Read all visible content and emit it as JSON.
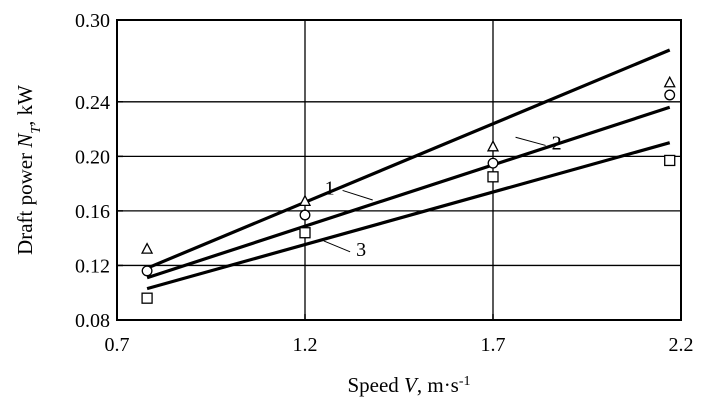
{
  "chart_data": {
    "type": "line",
    "xlabel": "Speed V, m·s⁻¹",
    "xlabel_parts": {
      "prefix": "Speed ",
      "var": "V",
      "unit": ", m·s",
      "exp": "-1"
    },
    "ylabel": "Draft power N_T, kW",
    "ylabel_parts": {
      "prefix": "Draft power ",
      "var": "N",
      "sub": "T",
      "unit": ", kW"
    },
    "xlim": [
      0.7,
      2.2
    ],
    "ylim": [
      0.08,
      0.3
    ],
    "x_ticks": [
      0.7,
      1.2,
      1.7,
      2.2
    ],
    "x_tick_labels": [
      "0.7",
      "1.2",
      "1.7",
      "2.2"
    ],
    "y_ticks": [
      0.08,
      0.12,
      0.16,
      0.2,
      0.24,
      0.3
    ],
    "y_tick_labels": [
      "0.08",
      "0.12",
      "0.16",
      "0.20",
      "0.24",
      "0.30"
    ],
    "grid_x": [
      1.2,
      1.7
    ],
    "grid_y": [
      0.12,
      0.16,
      0.2,
      0.24
    ],
    "series": [
      {
        "name": "1",
        "marker": "triangle",
        "fit": [
          [
            0.78,
            0.118
          ],
          [
            2.17,
            0.278
          ]
        ],
        "points": [
          [
            0.78,
            0.132
          ],
          [
            1.2,
            0.167
          ],
          [
            1.7,
            0.207
          ],
          [
            2.17,
            0.254
          ]
        ]
      },
      {
        "name": "2",
        "marker": "circle",
        "fit": [
          [
            0.78,
            0.111
          ],
          [
            2.17,
            0.236
          ]
        ],
        "points": [
          [
            0.78,
            0.116
          ],
          [
            1.2,
            0.157
          ],
          [
            1.7,
            0.195
          ],
          [
            2.17,
            0.245
          ]
        ]
      },
      {
        "name": "3",
        "marker": "square",
        "fit": [
          [
            0.78,
            0.103
          ],
          [
            2.17,
            0.21
          ]
        ],
        "points": [
          [
            0.78,
            0.096
          ],
          [
            1.2,
            0.144
          ],
          [
            1.7,
            0.185
          ],
          [
            2.17,
            0.197
          ]
        ]
      }
    ],
    "curve_labels": [
      {
        "series": "1",
        "text": "1",
        "at": [
          1.3,
          0.175
        ],
        "leader_to": [
          1.38,
          0.168
        ]
      },
      {
        "series": "2",
        "text": "2",
        "at": [
          1.84,
          0.208
        ],
        "leader_to": [
          1.76,
          0.214
        ]
      },
      {
        "series": "3",
        "text": "3",
        "at": [
          1.32,
          0.13
        ],
        "leader_to": [
          1.25,
          0.138
        ]
      }
    ]
  }
}
